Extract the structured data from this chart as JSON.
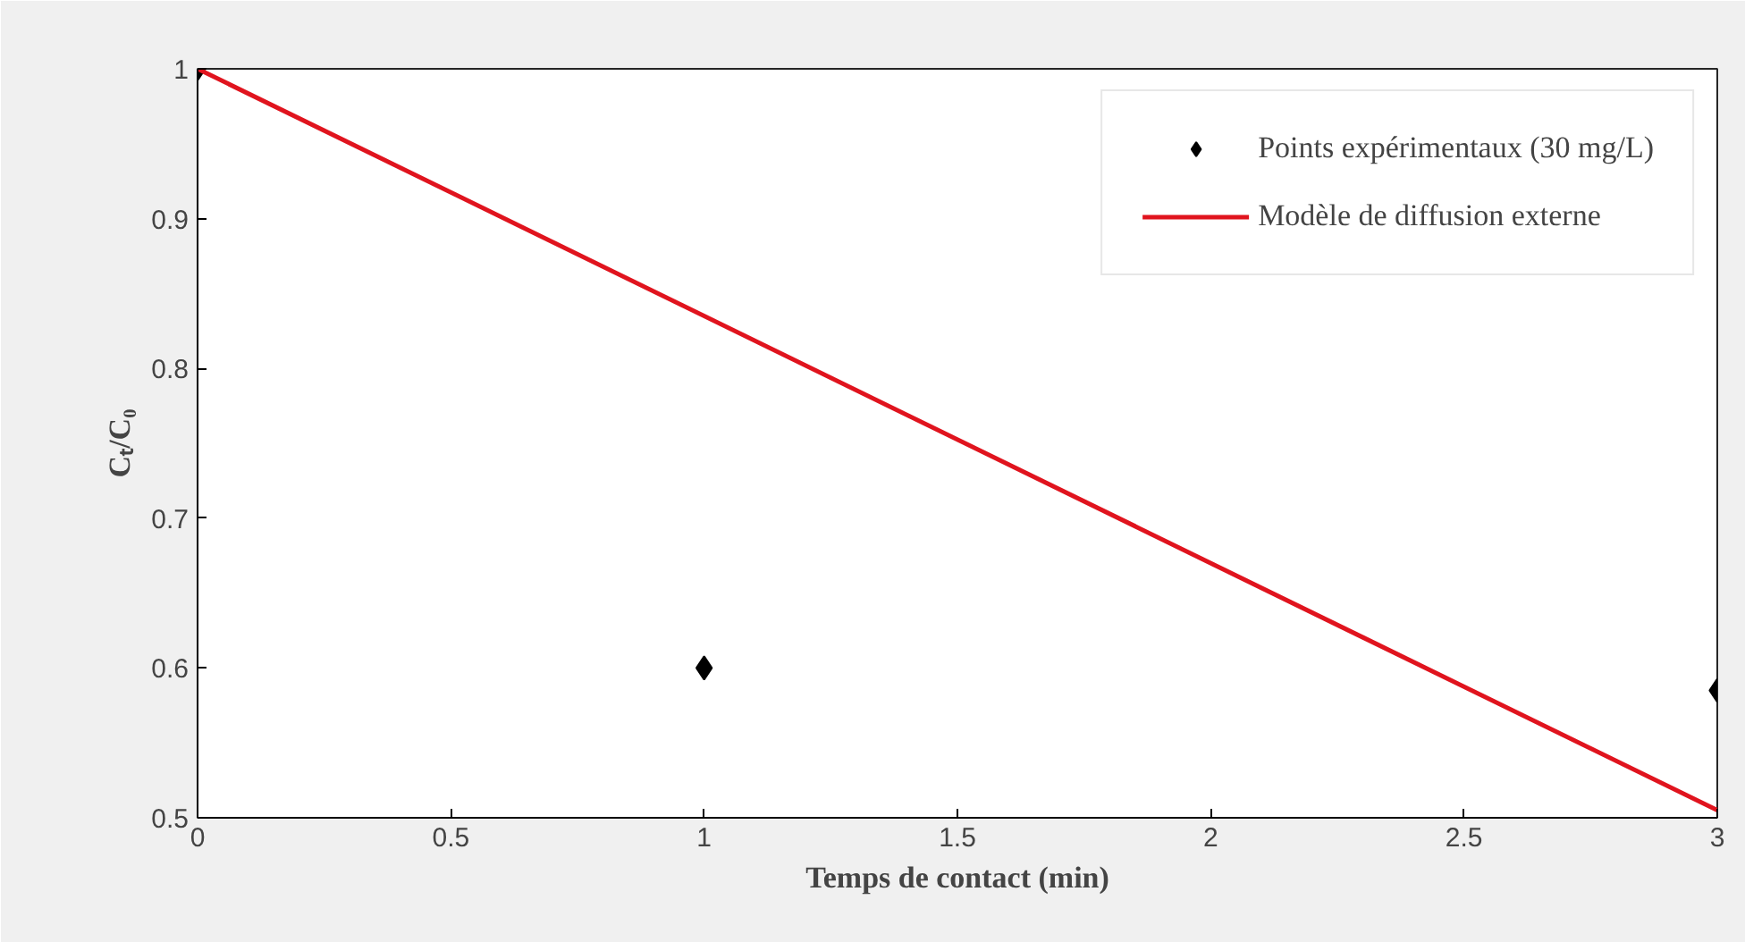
{
  "chart_data": {
    "type": "scatter",
    "xlabel": "Temps de contact (min)",
    "ylabel": "Cₜ/C₀",
    "xlim": [
      0,
      3
    ],
    "ylim": [
      0.5,
      1
    ],
    "xticks": [
      0,
      0.5,
      1,
      1.5,
      2,
      2.5,
      3
    ],
    "yticks": [
      0.5,
      0.6,
      0.7,
      0.8,
      0.9,
      1
    ],
    "grid": false,
    "legend": "top right",
    "series": [
      {
        "name": "Points expérimentaux (30 mg/L)",
        "marker": "diamond",
        "color": "#000000",
        "x": [
          0,
          1,
          3
        ],
        "values": [
          1,
          0.6,
          0.585
        ]
      },
      {
        "name": "Modèle de diffusion externe",
        "type": "line",
        "marker": "none",
        "line_style": "solid",
        "color": "#e0141e",
        "x": [
          0,
          3
        ],
        "values": [
          1,
          0.505
        ]
      }
    ]
  }
}
